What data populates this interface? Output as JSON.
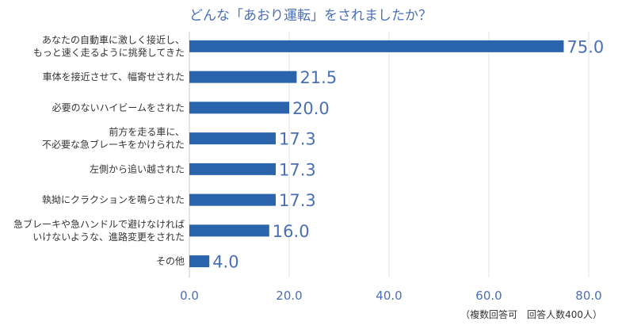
{
  "chart_data": {
    "type": "bar",
    "orientation": "horizontal",
    "title": "どんな「あおり運転」をされましたか？",
    "categories": [
      [
        "あなたの自動車に激しく接近し、",
        "もっと速く走るように挑発してきた"
      ],
      [
        "車体を接近させて、幅寄せされた"
      ],
      [
        "必要のないハイビームをされた"
      ],
      [
        "前方を走る車に、",
        "不必要な急ブレーキをかけられた"
      ],
      [
        "左側から追い越された"
      ],
      [
        "執拗にクラクションを鳴らされた"
      ],
      [
        "急ブレーキや急ハンドルで避けなければ",
        "いけないような、進路変更をされた"
      ],
      [
        "その他"
      ]
    ],
    "values": [
      75.0,
      21.5,
      20.0,
      17.3,
      17.3,
      17.3,
      16.0,
      4.0
    ],
    "value_labels": [
      "75.0",
      "21.5",
      "20.0",
      "17.3",
      "17.3",
      "17.3",
      "16.0",
      "4.0"
    ],
    "xlim": [
      0,
      80
    ],
    "xticks": [
      "0.0",
      "20.0",
      "40.0",
      "60.0",
      "80.0"
    ],
    "xtick_values": [
      0,
      20,
      40,
      60,
      80
    ],
    "grid": true,
    "bar_color": "#2a64ad",
    "note": "（複数回答可　回答人数400人）"
  }
}
